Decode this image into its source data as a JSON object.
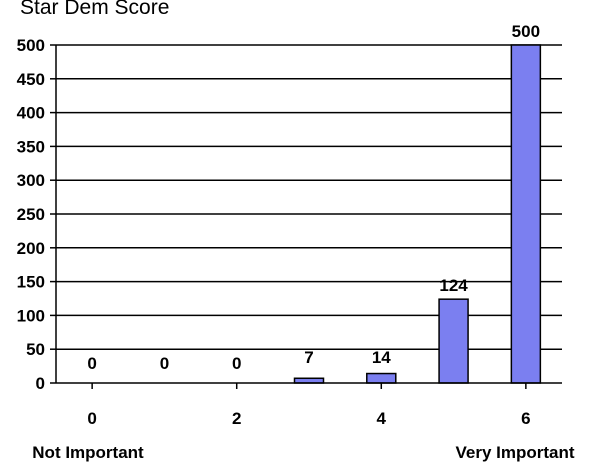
{
  "chart_data": {
    "type": "bar",
    "title": "Star Dem Score",
    "x_ticks": [
      "0",
      "2",
      "4",
      "6"
    ],
    "x_end_labels": {
      "left": "Not Important",
      "right": "Very Important"
    },
    "categories": [
      "0",
      "1",
      "2",
      "3",
      "4",
      "5",
      "6"
    ],
    "values": [
      0,
      0,
      0,
      7,
      14,
      124,
      500
    ],
    "ylim": [
      0,
      500
    ],
    "yticks": [
      0,
      50,
      100,
      150,
      200,
      250,
      300,
      350,
      400,
      450,
      500
    ],
    "grid": true,
    "bar_color": "#7b7ff0",
    "bar_outline_color": "#000000"
  }
}
